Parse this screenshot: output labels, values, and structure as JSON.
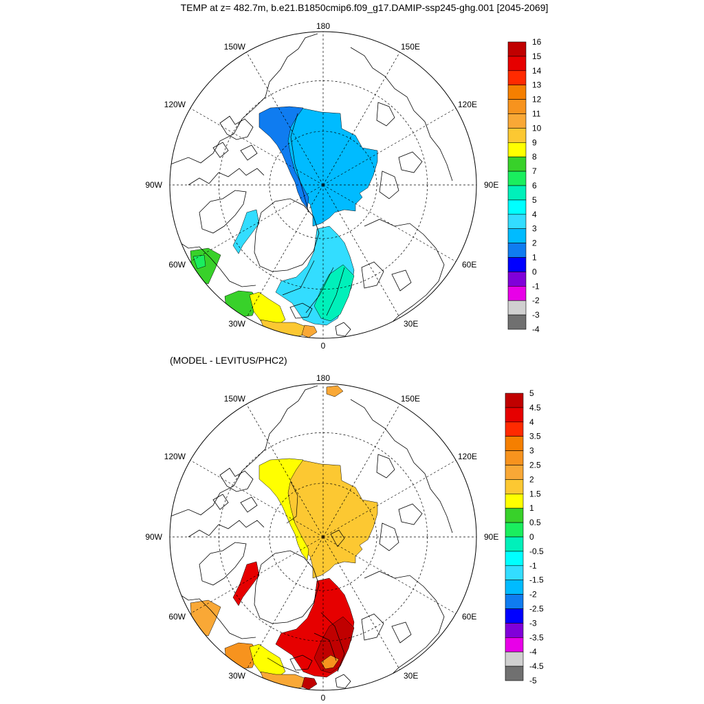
{
  "title": "TEMP at z= 482.7m, b.e21.B1850cmip6.f09_g17.DAMIP-ssp245-ghg.001 [2045-2069]",
  "subtitle": "(MODEL - LEVITUS/PHC2)",
  "lon_labels": [
    "180",
    "150E",
    "120E",
    "90E",
    "60E",
    "30E",
    "0",
    "30W",
    "60W",
    "90W",
    "120W",
    "150W"
  ],
  "maps": [
    {
      "id": "model",
      "levels": [
        "16",
        "15",
        "14",
        "13",
        "12",
        "11",
        "10",
        "9",
        "8",
        "7",
        "6",
        "5",
        "4",
        "3",
        "2",
        "1",
        "0",
        "-1",
        "-2",
        "-3",
        "-4"
      ],
      "colors": [
        "#c00000",
        "#e60000",
        "#ff2a00",
        "#f57f00",
        "#f7931e",
        "#f9a836",
        "#fcc832",
        "#ffff00",
        "#38d12a",
        "#1aee5e",
        "#00f0ba",
        "#00ffff",
        "#33ddff",
        "#00bbff",
        "#0f7cf0",
        "#0000ff",
        "#8000d9",
        "#e800e8",
        "#d0d0d0",
        "#707070"
      ],
      "regions": [
        {
          "name": "eurasian-basin",
          "color": "#00bbff"
        },
        {
          "name": "canada-basin-margin",
          "color": "#0f7cf0"
        },
        {
          "name": "fram-strait",
          "color": "#33ddff"
        },
        {
          "name": "baffin-bay",
          "color": "#33ddff"
        },
        {
          "name": "labrador-sea",
          "color": "#38d12a"
        },
        {
          "name": "labrador-sea-core",
          "color": "#1aee5e"
        },
        {
          "name": "norwegian-sea",
          "color": "#00f0ba"
        },
        {
          "name": "denmark-strait",
          "color": "#38d12a"
        },
        {
          "name": "irminger-sea",
          "color": "#ffff00"
        },
        {
          "name": "iceland-shelf",
          "color": "#fcc832"
        },
        {
          "name": "north-atlantic-edge",
          "color": "#f9a836"
        }
      ]
    },
    {
      "id": "difference",
      "levels": [
        "5",
        "4.5",
        "4",
        "3.5",
        "3",
        "2.5",
        "2",
        "1.5",
        "1",
        "0.5",
        "0",
        "-0.5",
        "-1",
        "-1.5",
        "-2",
        "-2.5",
        "-3",
        "-3.5",
        "-4",
        "-4.5",
        "-5"
      ],
      "colors": [
        "#c00000",
        "#e60000",
        "#ff2a00",
        "#f57f00",
        "#f7931e",
        "#f9a836",
        "#fcc832",
        "#ffff00",
        "#38d12a",
        "#1aee5e",
        "#00f0ba",
        "#00ffff",
        "#33ddff",
        "#00bbff",
        "#0f7cf0",
        "#0000ff",
        "#8000d9",
        "#e800e8",
        "#d0d0d0",
        "#707070"
      ],
      "regions": [
        {
          "name": "eurasian-basin",
          "color": "#fcc832"
        },
        {
          "name": "canada-basin-margin",
          "color": "#ffff00"
        },
        {
          "name": "fram-strait",
          "color": "#e60000"
        },
        {
          "name": "baffin-bay",
          "color": "#e60000"
        },
        {
          "name": "labrador-sea",
          "color": "#f9a836"
        },
        {
          "name": "norwegian-sea",
          "color": "#c00000"
        },
        {
          "name": "norwegian-sea-inner",
          "color": "#f7931e"
        },
        {
          "name": "denmark-strait",
          "color": "#f7931e"
        },
        {
          "name": "irminger-sea",
          "color": "#ffff00"
        },
        {
          "name": "iceland-shelf",
          "color": "#f9a836"
        },
        {
          "name": "north-atlantic-edge",
          "color": "#c00000"
        },
        {
          "name": "bering-strait-patch",
          "color": "#f9a836"
        }
      ]
    }
  ]
}
